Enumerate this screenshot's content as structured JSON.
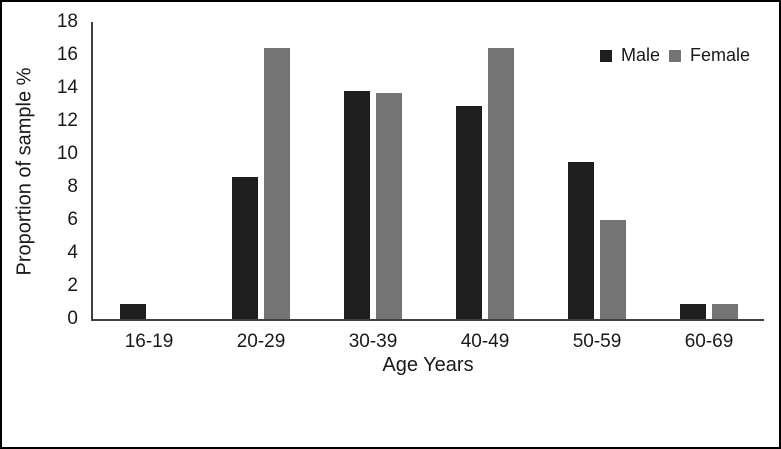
{
  "figure": {
    "background_color": "#ffffff",
    "border_color": "#000000"
  },
  "colors": {
    "axis_line": "#3f3f3f",
    "text": "#1a1a1a",
    "male_bar": "#1e1e1e",
    "female_bar": "#747474"
  },
  "chart_data": {
    "type": "bar",
    "title": "",
    "xlabel": "Age Years",
    "ylabel": "Proportion of sample %",
    "categories": [
      "16-19",
      "20-29",
      "30-39",
      "40-49",
      "50-59",
      "60-69"
    ],
    "series": [
      {
        "name": "Male",
        "color": "#1e1e1e",
        "values": [
          0.9,
          8.6,
          13.8,
          12.9,
          9.5,
          0.9
        ]
      },
      {
        "name": "Female",
        "color": "#747474",
        "values": [
          0,
          16.4,
          13.7,
          16.4,
          6.0,
          0.9
        ]
      }
    ],
    "ylim": [
      0,
      18
    ],
    "yticks": [
      0,
      2,
      4,
      6,
      8,
      10,
      12,
      14,
      16,
      18
    ],
    "grid": false,
    "legend_position": "top-right"
  }
}
